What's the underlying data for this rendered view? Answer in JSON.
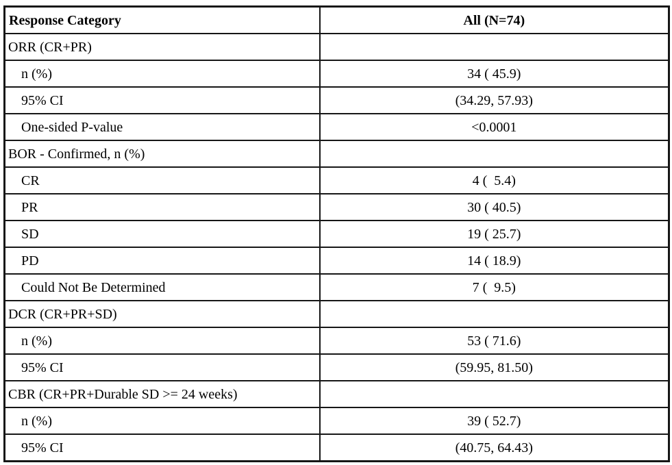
{
  "page": {
    "background_color": "#ffffff",
    "text_color": "#000000",
    "border_color": "#161616"
  },
  "table": {
    "header": {
      "category_label": "Response Category",
      "value_label": "All (N=74)"
    },
    "rows": [
      {
        "label": "ORR (CR+PR)",
        "value": "",
        "type": "section"
      },
      {
        "label": "n (%)",
        "value": "34 ( 45.9)",
        "type": "sub"
      },
      {
        "label": "95% CI",
        "value": "(34.29, 57.93)",
        "type": "sub"
      },
      {
        "label": "One-sided P-value",
        "value": "<0.0001",
        "type": "sub"
      },
      {
        "label": "BOR - Confirmed, n (%)",
        "value": "",
        "type": "section"
      },
      {
        "label": "CR",
        "value": "4 (  5.4)",
        "type": "sub"
      },
      {
        "label": "PR",
        "value": "30 ( 40.5)",
        "type": "sub"
      },
      {
        "label": "SD",
        "value": "19 ( 25.7)",
        "type": "sub"
      },
      {
        "label": "PD",
        "value": "14 ( 18.9)",
        "type": "sub"
      },
      {
        "label": "Could Not Be Determined",
        "value": "7 (  9.5)",
        "type": "sub"
      },
      {
        "label": "DCR (CR+PR+SD)",
        "value": "",
        "type": "section"
      },
      {
        "label": "n (%)",
        "value": "53 ( 71.6)",
        "type": "sub"
      },
      {
        "label": "95% CI",
        "value": "(59.95, 81.50)",
        "type": "sub"
      },
      {
        "label": "CBR (CR+PR+Durable SD >= 24 weeks)",
        "value": "",
        "type": "section"
      },
      {
        "label": "n (%)",
        "value": "39 ( 52.7)",
        "type": "sub"
      },
      {
        "label": "95% CI",
        "value": "(40.75, 64.43)",
        "type": "sub"
      }
    ]
  }
}
